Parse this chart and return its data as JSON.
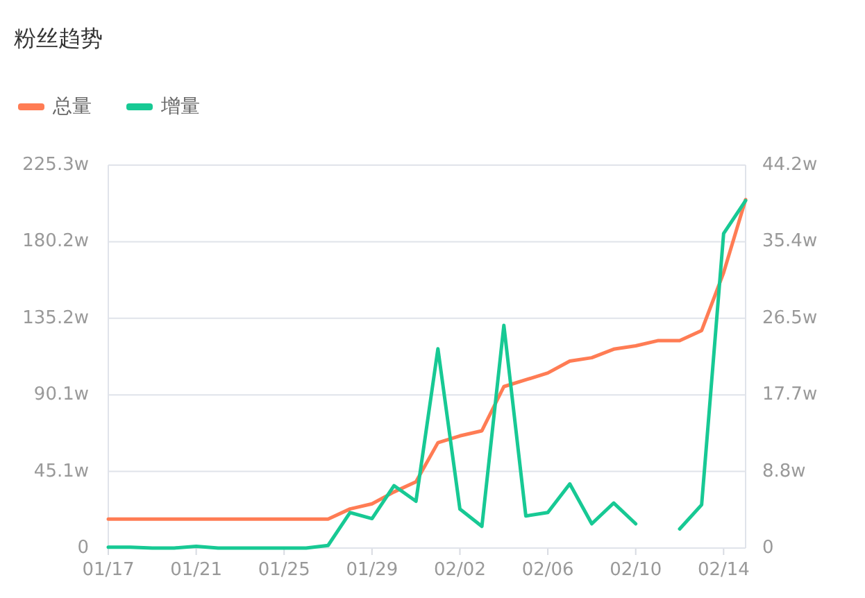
{
  "chart_data": {
    "type": "line",
    "title": "粉丝趋势",
    "categories": [
      "01/17",
      null,
      null,
      null,
      "01/21",
      null,
      null,
      null,
      "01/25",
      null,
      null,
      null,
      "01/29",
      null,
      null,
      null,
      "02/02",
      null,
      null,
      null,
      "02/06",
      null,
      null,
      null,
      "02/10",
      null,
      null,
      null,
      "02/14",
      null
    ],
    "series": [
      {
        "name": "总量",
        "color": "#ff7c54",
        "values": [
          17,
          17,
          17,
          17,
          17,
          17,
          17,
          17,
          17,
          17,
          17,
          23,
          26,
          33,
          39,
          62,
          66,
          69,
          95,
          99,
          103,
          110,
          112,
          117,
          119,
          122,
          122,
          128,
          162,
          205
        ]
      },
      {
        "name": "增量",
        "color": "#17c994",
        "axis": "y2",
        "values": [
          0.1,
          0.1,
          0,
          0,
          0.2,
          0,
          0,
          0,
          0,
          0,
          0.3,
          4.1,
          3.4,
          7.2,
          5.4,
          23.0,
          4.5,
          2.5,
          25.7,
          3.7,
          4.1,
          7.4,
          2.8,
          5.2,
          2.8,
          null,
          2.2,
          5.0,
          36.3,
          40.1
        ]
      }
    ],
    "ylim": [
      0,
      225.3
    ],
    "yticks": [
      0,
      {
        "value": 45.1,
        "label": "45.1w"
      },
      {
        "value": 90.1,
        "label": "90.1w"
      },
      {
        "value": 135.2,
        "label": "135.2w"
      },
      {
        "value": 180.2,
        "label": "180.2w"
      },
      {
        "value": 225.3,
        "label": "225.3w"
      }
    ],
    "y2lim": [
      0,
      44.2
    ],
    "y2ticks": [
      0,
      {
        "value": 8.8,
        "label": "8.8w"
      },
      {
        "value": 17.7,
        "label": "17.7w"
      },
      {
        "value": 26.5,
        "label": "26.5w"
      },
      {
        "value": 35.4,
        "label": "35.4w"
      },
      {
        "value": 44.2,
        "label": "44.2w"
      }
    ],
    "grid": "y",
    "legend": "top left"
  }
}
